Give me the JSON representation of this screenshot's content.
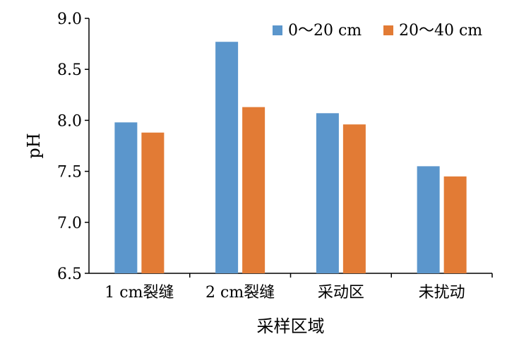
{
  "chart_data": {
    "type": "bar",
    "title": "",
    "xlabel": "采样区域",
    "ylabel": "pH",
    "categories": [
      "1 cm裂缝",
      "2 cm裂缝",
      "采动区",
      "未扰动"
    ],
    "series": [
      {
        "name": "0～20 cm",
        "color": "#5b96cc",
        "values": [
          7.98,
          8.77,
          8.07,
          7.55
        ]
      },
      {
        "name": "20～40 cm",
        "color": "#e27b35",
        "values": [
          7.88,
          8.13,
          7.96,
          7.45
        ]
      }
    ],
    "ylim": [
      6.5,
      9.0
    ],
    "yticks": [
      "6.5",
      "7.0",
      "7.5",
      "8.0",
      "8.5",
      "9.0"
    ],
    "legend_position": "top-right",
    "grid": false
  }
}
